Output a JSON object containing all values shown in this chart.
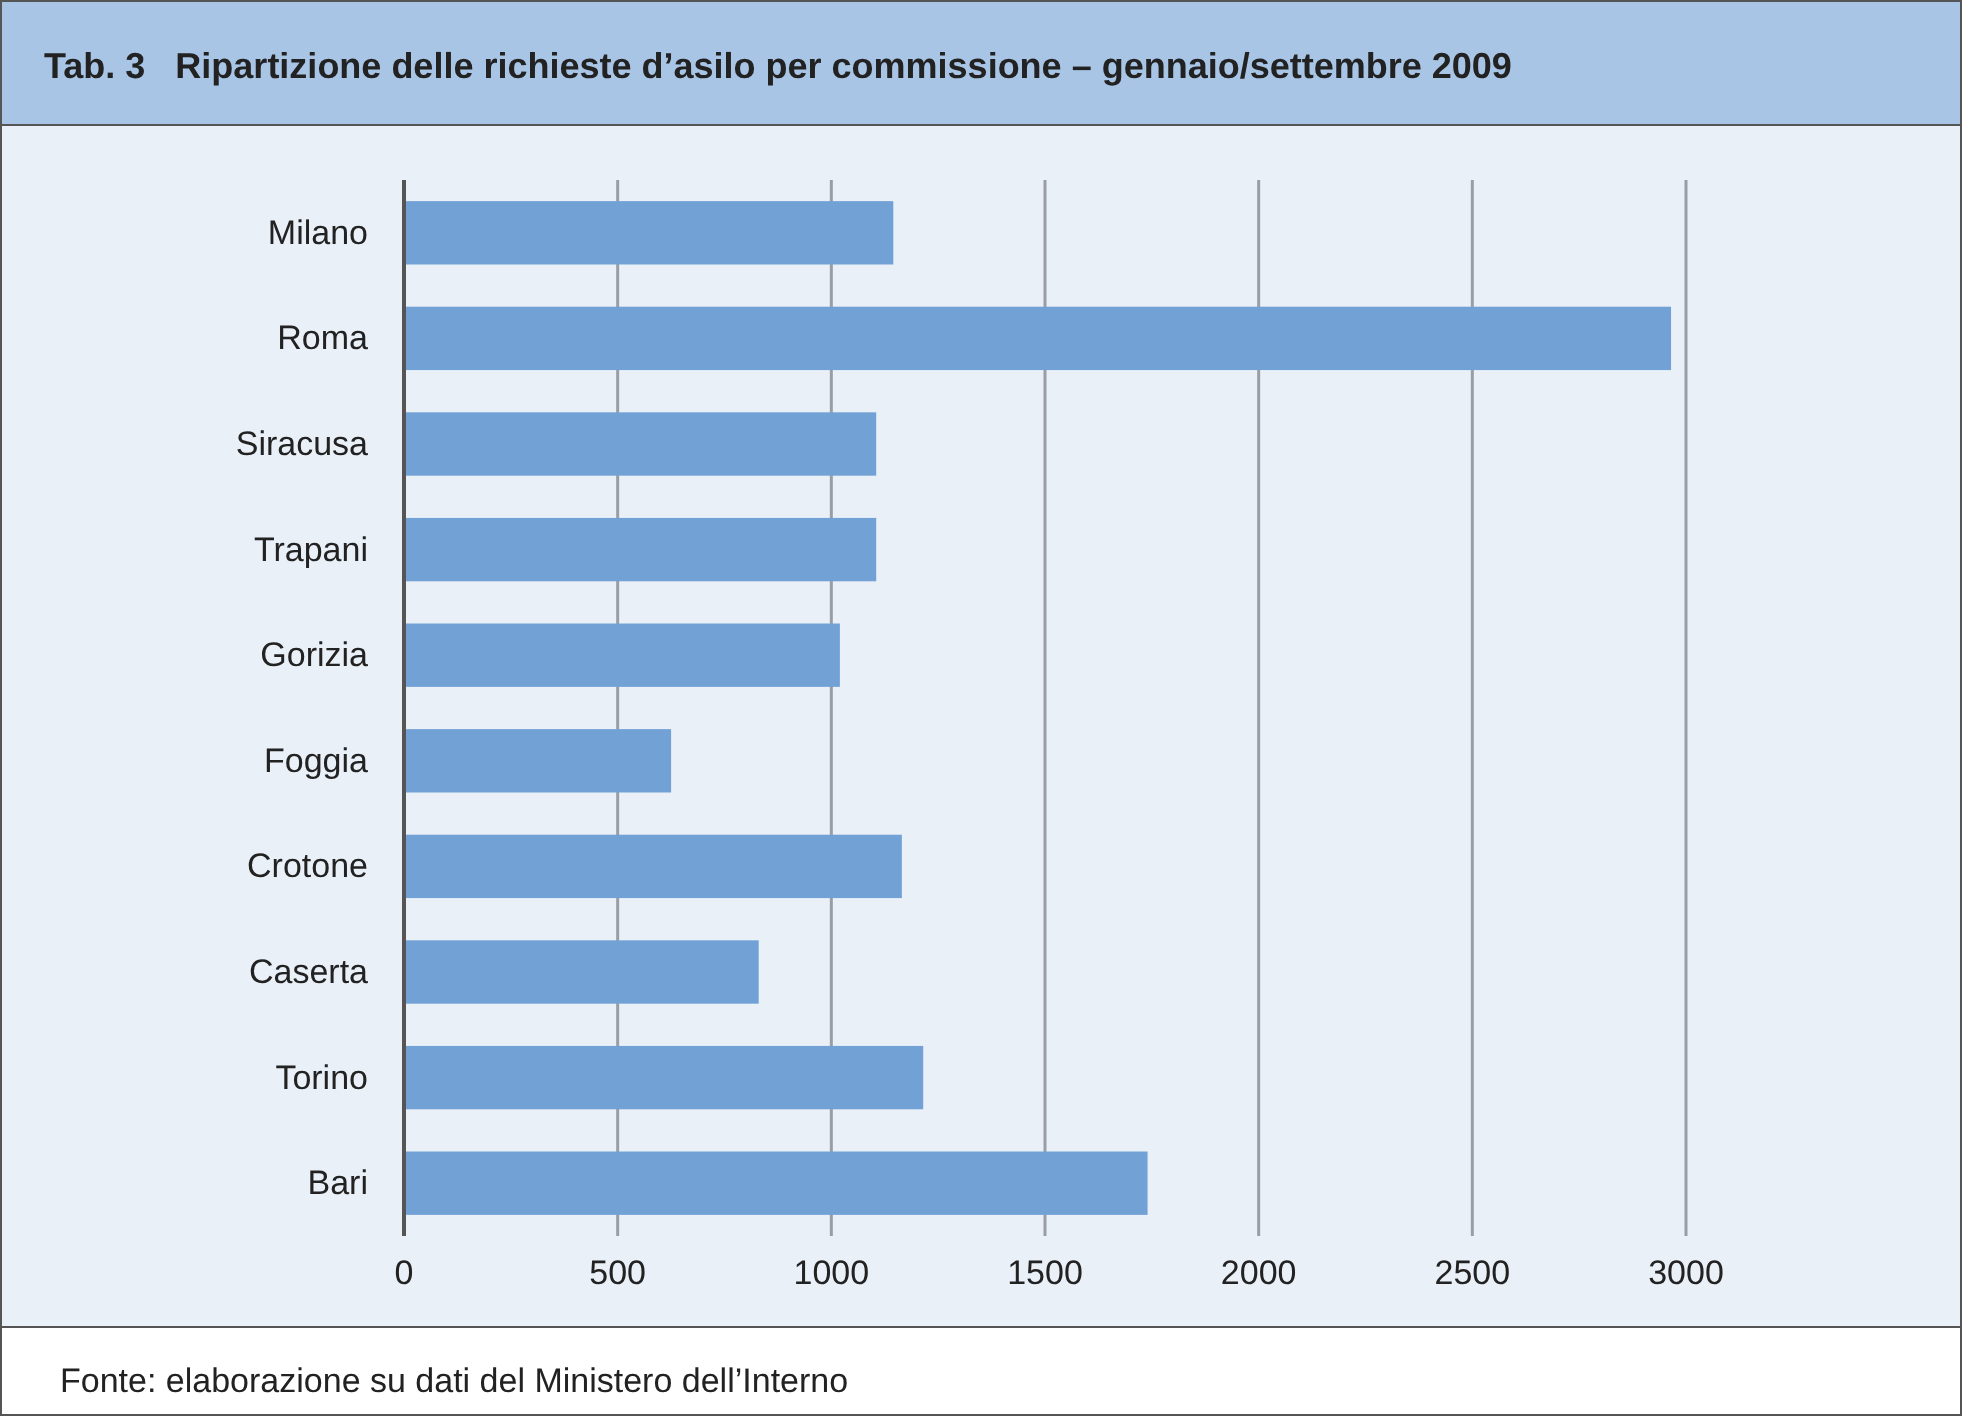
{
  "chart_data": {
    "type": "bar",
    "orientation": "horizontal",
    "title": "Tab. 3   Ripartizione delle richieste d’asilo per commissione – gennaio/settembre 2009",
    "categories": [
      "Milano",
      "Roma",
      "Siracusa",
      "Trapani",
      "Gorizia",
      "Foggia",
      "Crotone",
      "Caserta",
      "Torino",
      "Bari"
    ],
    "values": [
      1145,
      2965,
      1105,
      1105,
      1020,
      625,
      1165,
      830,
      1215,
      1740
    ],
    "color": "#71a1d5",
    "xlim": [
      0,
      3000
    ],
    "xticks": [
      0,
      500,
      1000,
      1500,
      2000,
      2500,
      3000
    ],
    "grid": "x",
    "annotations": [
      "Fonte: elaborazione su dati del Ministero dell’Interno"
    ]
  }
}
